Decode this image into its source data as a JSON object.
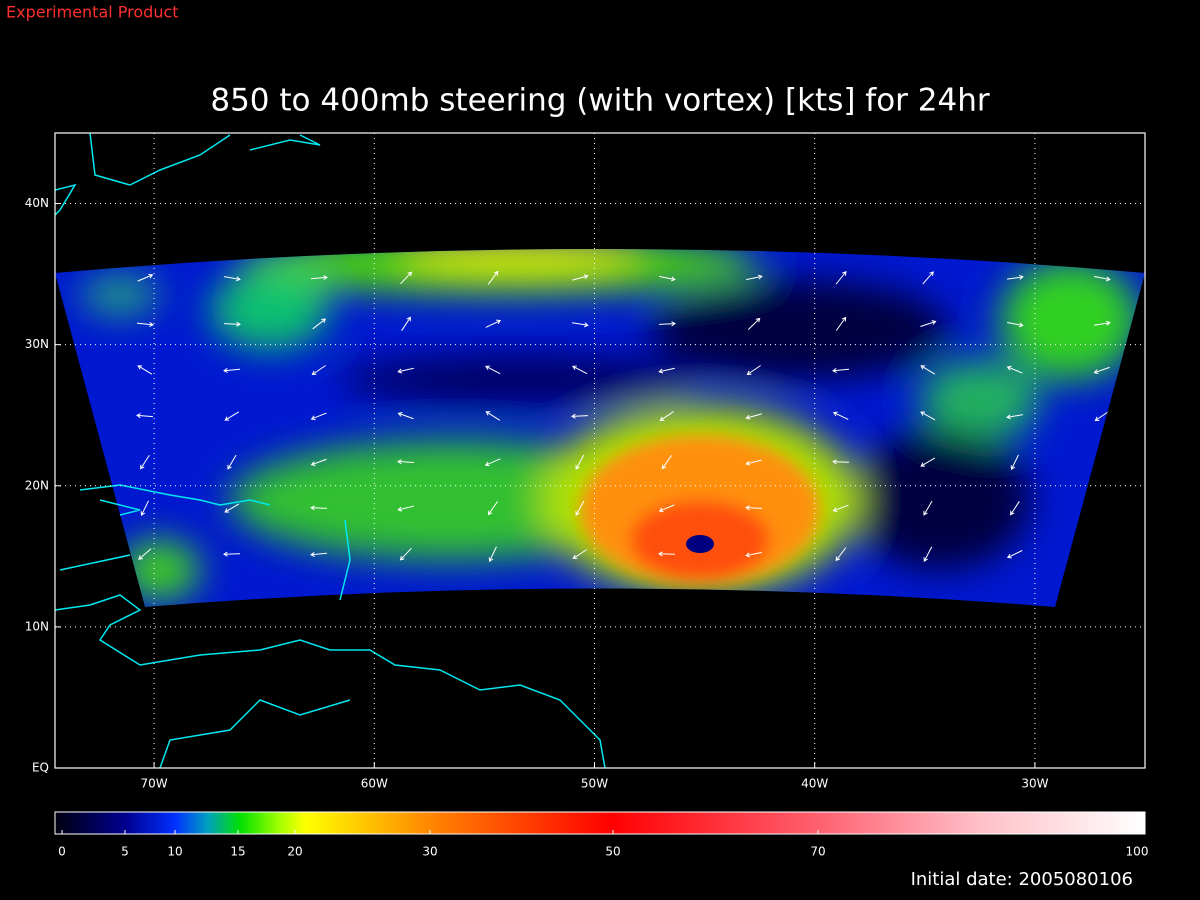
{
  "top_label": "Experimental Product",
  "chart_data": {
    "type": "map",
    "title": "850 to 400mb steering (with vortex) [kts] for 24hr",
    "xlim": [
      -74.5,
      -25
    ],
    "ylim": [
      0,
      45
    ],
    "xticks": [
      {
        "value": -70,
        "label": "70W"
      },
      {
        "value": -60,
        "label": "60W"
      },
      {
        "value": -50,
        "label": "50W"
      },
      {
        "value": -40,
        "label": "40W"
      },
      {
        "value": -30,
        "label": "30W"
      }
    ],
    "yticks": [
      {
        "value": 0,
        "label": "EQ"
      },
      {
        "value": 10,
        "label": "10N"
      },
      {
        "value": 20,
        "label": "20N"
      },
      {
        "value": 30,
        "label": "30N"
      },
      {
        "value": 40,
        "label": "40N"
      }
    ],
    "grid": true,
    "colorbar": {
      "ticks": [
        0,
        5,
        10,
        15,
        20,
        30,
        50,
        70,
        100
      ]
    },
    "footer": "Initial date: 2005080106"
  }
}
